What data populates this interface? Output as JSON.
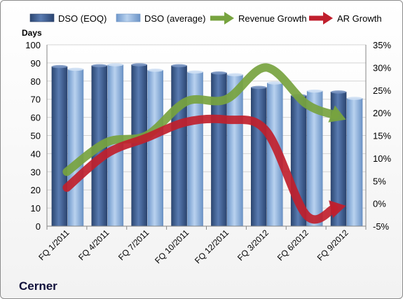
{
  "company": "Cerner",
  "chart_data": {
    "type": "bar",
    "categories": [
      "FQ 1/2011",
      "FQ 4/2011",
      "FQ 7/2011",
      "FQ 10/2011",
      "FQ 12/2011",
      "FQ 3/2012",
      "FQ 6/2012",
      "FQ 9/2012"
    ],
    "ylabel": "Days",
    "ylim": [
      0,
      100
    ],
    "yticks": [
      0,
      10,
      20,
      30,
      40,
      50,
      60,
      70,
      80,
      90,
      100
    ],
    "y2lim": [
      -5,
      35
    ],
    "y2ticks": [
      "-5%",
      "0%",
      "5%",
      "10%",
      "15%",
      "20%",
      "25%",
      "30%",
      "35%"
    ],
    "y2tick_values": [
      -5,
      0,
      5,
      10,
      15,
      20,
      25,
      30,
      35
    ],
    "grid": true,
    "legend_position": "top",
    "series": [
      {
        "name": "DSO (EOQ)",
        "kind": "bar",
        "axis": "left",
        "color": "#3f5f94",
        "values": [
          88,
          88.5,
          89,
          88.5,
          84.5,
          76.5,
          72,
          74
        ]
      },
      {
        "name": "DSO (average)",
        "kind": "bar",
        "axis": "left",
        "color": "#8db3e2",
        "values": [
          86.5,
          89,
          86,
          85,
          83.5,
          79,
          74.5,
          70.5
        ]
      },
      {
        "name": "Revenue Growth",
        "kind": "arrow-line",
        "axis": "right",
        "color": "#77a33f",
        "values": [
          7,
          13.5,
          15,
          22.5,
          23,
          30,
          22,
          18.5
        ]
      },
      {
        "name": "AR Growth",
        "kind": "arrow-line",
        "axis": "right",
        "color": "#c01f2d",
        "values": [
          3.5,
          11,
          14.5,
          18,
          18.5,
          16,
          -2.5,
          -0.5
        ]
      }
    ]
  }
}
